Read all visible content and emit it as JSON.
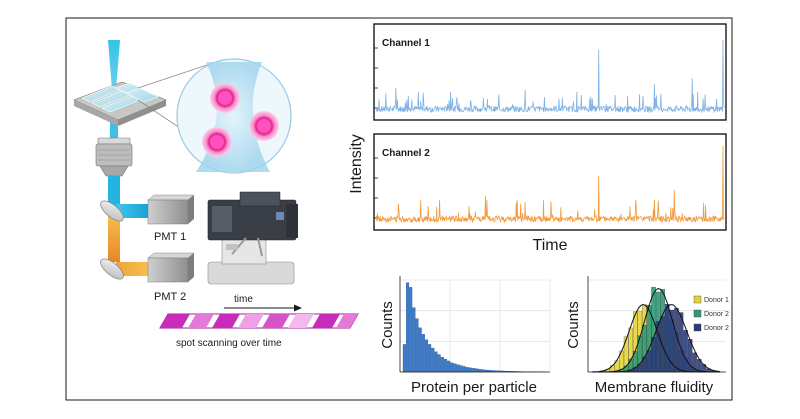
{
  "schematic": {
    "pmt1_label": "PMT 1",
    "pmt2_label": "PMT 2",
    "time_label": "time",
    "caption": "spot scanning over time"
  },
  "traces": {
    "ylabel": "Intensity",
    "xlabel": "Time",
    "channel1": {
      "title": "Channel 1",
      "color": "#7fb2e5"
    },
    "channel2": {
      "title": "Channel 2",
      "color": "#f29a3c"
    }
  },
  "chart_data": [
    {
      "type": "bar",
      "title": "",
      "xlabel": "Protein per particle",
      "ylabel": "Counts",
      "color": "#3d7cc9",
      "values": [
        30,
        97,
        92,
        70,
        58,
        48,
        41,
        35,
        30,
        26,
        22,
        19,
        16,
        14,
        12,
        10,
        9,
        8,
        7,
        6,
        5,
        4.5,
        4,
        3.5,
        3,
        2.6,
        2.2,
        2,
        1.7,
        1.5,
        1.3,
        1.2,
        1,
        0.9,
        0.8,
        0.7,
        0.6,
        0.5,
        0.4,
        0.35,
        0.3,
        0.25,
        0.2,
        0.15,
        0.1
      ],
      "ylim": [
        0,
        100
      ]
    },
    {
      "type": "bar",
      "title": "",
      "xlabel": "Membrane fluidity",
      "ylabel": "Counts",
      "legend_position": "right",
      "series": [
        {
          "name": "Donor 1",
          "color": "#e4d43a",
          "mean": 0.4,
          "sd": 0.11,
          "peak": 55
        },
        {
          "name": "Donor 2",
          "color": "#2e9a78",
          "mean": 0.52,
          "sd": 0.11,
          "peak": 68
        },
        {
          "name": "Donor 2",
          "color": "#2c3c7a",
          "mean": 0.62,
          "sd": 0.12,
          "peak": 55
        }
      ],
      "ylim": [
        0,
        75
      ]
    }
  ]
}
